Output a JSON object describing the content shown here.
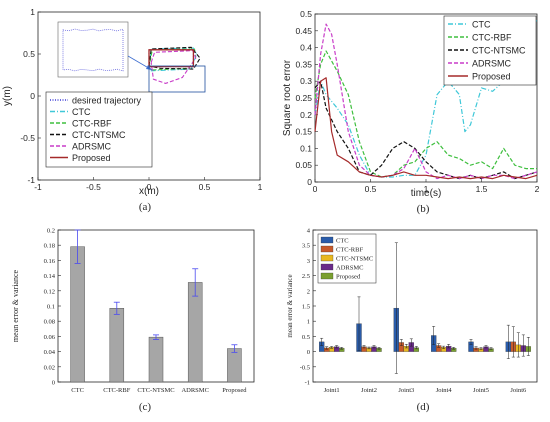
{
  "chart_data": [
    {
      "panel": "(a)",
      "type": "line",
      "xlabel": "x(m)",
      "ylabel": "y(m)",
      "xlim": [
        -1,
        1
      ],
      "ylim": [
        -1,
        1
      ],
      "xticks": [
        "-1",
        "-0.5",
        "0",
        "0.5",
        "1"
      ],
      "yticks": [
        "-1",
        "-0.5",
        "0",
        "0.5",
        "1"
      ],
      "legend_position": "bottom-left",
      "inset": "zoomed view of the trajectories (top-left)",
      "series": [
        {
          "name": "desired trajectory",
          "color": "#3b3bd6",
          "style": "dotted",
          "x": [
            0.0,
            0.0,
            0.4,
            0.4,
            0.0
          ],
          "y": [
            0.35,
            0.55,
            0.55,
            0.35,
            0.35
          ]
        },
        {
          "name": "CTC",
          "color": "#3fc8d8",
          "style": "dashdot",
          "x": [
            0.0,
            0.02,
            0.4,
            0.43,
            0.38,
            0.02,
            0.0
          ],
          "y": [
            0.33,
            0.56,
            0.57,
            0.5,
            0.32,
            0.3,
            0.33
          ]
        },
        {
          "name": "CTC-RBF",
          "color": "#3fbf3f",
          "style": "dashed",
          "x": [
            0.0,
            0.03,
            0.41,
            0.42,
            0.36,
            0.02,
            0.0
          ],
          "y": [
            0.34,
            0.55,
            0.56,
            0.45,
            0.33,
            0.31,
            0.34
          ]
        },
        {
          "name": "CTC-NTSMC",
          "color": "#111111",
          "style": "dashed",
          "x": [
            0.0,
            0.02,
            0.38,
            0.46,
            0.4,
            0.1,
            0.0
          ],
          "y": [
            0.36,
            0.56,
            0.58,
            0.45,
            0.32,
            0.33,
            0.36
          ]
        },
        {
          "name": "ADRSMC",
          "color": "#c83cc8",
          "style": "dashed",
          "x": [
            0.02,
            0.05,
            0.4,
            0.42,
            0.3,
            0.15,
            0.04,
            0.02
          ],
          "y": [
            0.4,
            0.52,
            0.54,
            0.45,
            0.22,
            0.15,
            0.2,
            0.4
          ]
        },
        {
          "name": "Proposed",
          "color": "#a52a2a",
          "style": "solid",
          "x": [
            0.0,
            0.0,
            0.4,
            0.4,
            0.0
          ],
          "y": [
            0.35,
            0.55,
            0.55,
            0.35,
            0.35
          ]
        }
      ]
    },
    {
      "panel": "(b)",
      "type": "line",
      "xlabel": "time(s)",
      "ylabel": "Square root error",
      "xlim": [
        0,
        2
      ],
      "ylim": [
        0,
        0.5
      ],
      "xticks": [
        "0",
        "0.5",
        "1",
        "1.5",
        "2"
      ],
      "yticks": [
        "0",
        "0.05",
        "0.1",
        "0.15",
        "0.2",
        "0.25",
        "0.3",
        "0.35",
        "0.4",
        "0.45",
        "0.5"
      ],
      "legend_position": "top-right",
      "series": [
        {
          "name": "CTC",
          "color": "#3fc8d8",
          "style": "dashdot",
          "x": [
            0,
            0.05,
            0.1,
            0.2,
            0.3,
            0.4,
            0.5,
            0.6,
            0.7,
            0.8,
            0.9,
            1.0,
            1.1,
            1.2,
            1.3,
            1.35,
            1.4,
            1.5,
            1.6,
            1.7,
            1.8,
            1.9,
            2.0
          ],
          "y": [
            0.2,
            0.3,
            0.26,
            0.22,
            0.17,
            0.08,
            0.02,
            0.015,
            0.015,
            0.02,
            0.02,
            0.08,
            0.26,
            0.3,
            0.26,
            0.15,
            0.17,
            0.28,
            0.27,
            0.3,
            0.29,
            0.47,
            0.48
          ]
        },
        {
          "name": "CTC-RBF",
          "color": "#3fbf3f",
          "style": "dashed",
          "x": [
            0,
            0.05,
            0.1,
            0.2,
            0.3,
            0.4,
            0.5,
            0.6,
            0.7,
            0.8,
            0.9,
            1.0,
            1.1,
            1.2,
            1.3,
            1.4,
            1.5,
            1.6,
            1.7,
            1.8,
            1.9,
            2.0
          ],
          "y": [
            0.25,
            0.35,
            0.39,
            0.33,
            0.26,
            0.12,
            0.03,
            0.015,
            0.02,
            0.05,
            0.06,
            0.1,
            0.12,
            0.08,
            0.07,
            0.05,
            0.06,
            0.04,
            0.1,
            0.05,
            0.04,
            0.04
          ]
        },
        {
          "name": "CTC-NTSMC",
          "color": "#111111",
          "style": "dashed",
          "x": [
            0,
            0.05,
            0.1,
            0.2,
            0.3,
            0.4,
            0.5,
            0.6,
            0.7,
            0.8,
            0.9,
            1.0,
            1.1,
            1.2,
            1.3,
            1.4,
            1.5,
            1.6,
            1.7,
            1.8,
            1.9,
            2.0
          ],
          "y": [
            0.28,
            0.3,
            0.22,
            0.15,
            0.1,
            0.03,
            0.02,
            0.05,
            0.1,
            0.12,
            0.1,
            0.06,
            0.03,
            0.02,
            0.01,
            0.02,
            0.01,
            0.02,
            0.03,
            0.01,
            0.02,
            0.03
          ]
        },
        {
          "name": "ADRSMC",
          "color": "#c83cc8",
          "style": "dashed",
          "x": [
            0,
            0.05,
            0.1,
            0.15,
            0.2,
            0.3,
            0.4,
            0.5,
            0.6,
            0.7,
            0.8,
            0.9,
            1.0,
            1.1,
            1.2,
            1.3,
            1.4,
            1.5,
            1.6,
            1.7,
            1.8,
            1.9,
            2.0
          ],
          "y": [
            0.2,
            0.38,
            0.47,
            0.44,
            0.35,
            0.15,
            0.05,
            0.02,
            0.015,
            0.02,
            0.04,
            0.1,
            0.03,
            0.01,
            0.02,
            0.01,
            0.02,
            0.01,
            0.02,
            0.02,
            0.01,
            0.02,
            0.03
          ]
        },
        {
          "name": "Proposed",
          "color": "#a52a2a",
          "style": "solid",
          "x": [
            0,
            0.05,
            0.1,
            0.15,
            0.2,
            0.3,
            0.4,
            0.5,
            0.6,
            0.7,
            0.8,
            0.9,
            1.0,
            1.1,
            1.2,
            1.3,
            1.4,
            1.5,
            1.6,
            1.7,
            1.8,
            1.9,
            2.0
          ],
          "y": [
            0.15,
            0.3,
            0.31,
            0.15,
            0.08,
            0.06,
            0.03,
            0.02,
            0.015,
            0.02,
            0.03,
            0.02,
            0.02,
            0.015,
            0.01,
            0.015,
            0.01,
            0.015,
            0.01,
            0.02,
            0.015,
            0.01,
            0.02
          ]
        }
      ]
    },
    {
      "panel": "(c)",
      "type": "bar",
      "ylabel": "mean error & variance",
      "ylim": [
        0,
        0.2
      ],
      "yticks": [
        "0",
        "0.02",
        "0.04",
        "0.06",
        "0.08",
        "0.1",
        "0.12",
        "0.14",
        "0.16",
        "0.18",
        "0.2"
      ],
      "categories": [
        "CTC",
        "CTC-RBF",
        "CTC-NTSMC",
        "ADRSMC",
        "Proposed"
      ],
      "values": [
        0.178,
        0.097,
        0.059,
        0.131,
        0.044
      ],
      "errors": [
        0.022,
        0.008,
        0.003,
        0.018,
        0.005
      ],
      "bar_color": "#a6a6a6",
      "error_color": "#4a4af0"
    },
    {
      "panel": "(d)",
      "type": "bar",
      "ylabel": "mean error & variance",
      "ylim": [
        -1,
        4
      ],
      "yticks": [
        "-1",
        "-0.5",
        "0",
        "0.5",
        "1",
        "1.5",
        "2",
        "2.5",
        "3",
        "3.5",
        "4"
      ],
      "categories": [
        "Joint1",
        "Joint2",
        "Joint3",
        "Joint4",
        "Joint5",
        "Joint6"
      ],
      "legend_position": "top-left",
      "series": [
        {
          "name": "CTC",
          "color": "#2a5caa",
          "values": [
            0.32,
            0.92,
            1.43,
            0.53,
            0.32,
            0.32
          ],
          "errors": [
            0.12,
            0.88,
            2.15,
            0.3,
            0.08,
            0.55
          ]
        },
        {
          "name": "CTC-RBF",
          "color": "#c85a2a",
          "values": [
            0.12,
            0.16,
            0.3,
            0.2,
            0.12,
            0.32
          ],
          "errors": [
            0.04,
            0.04,
            0.1,
            0.06,
            0.04,
            0.5
          ]
        },
        {
          "name": "CTC-NTSMC",
          "color": "#e8b820",
          "values": [
            0.14,
            0.12,
            0.18,
            0.14,
            0.1,
            0.22
          ],
          "errors": [
            0.03,
            0.03,
            0.06,
            0.04,
            0.03,
            0.4
          ]
        },
        {
          "name": "ADRSMC",
          "color": "#6a2a8a",
          "values": [
            0.16,
            0.16,
            0.3,
            0.18,
            0.16,
            0.2
          ],
          "errors": [
            0.04,
            0.04,
            0.12,
            0.06,
            0.04,
            0.35
          ]
        },
        {
          "name": "Proposed",
          "color": "#7aa030",
          "values": [
            0.11,
            0.11,
            0.13,
            0.11,
            0.1,
            0.17
          ],
          "errors": [
            0.03,
            0.03,
            0.04,
            0.03,
            0.03,
            0.3
          ]
        }
      ]
    }
  ]
}
